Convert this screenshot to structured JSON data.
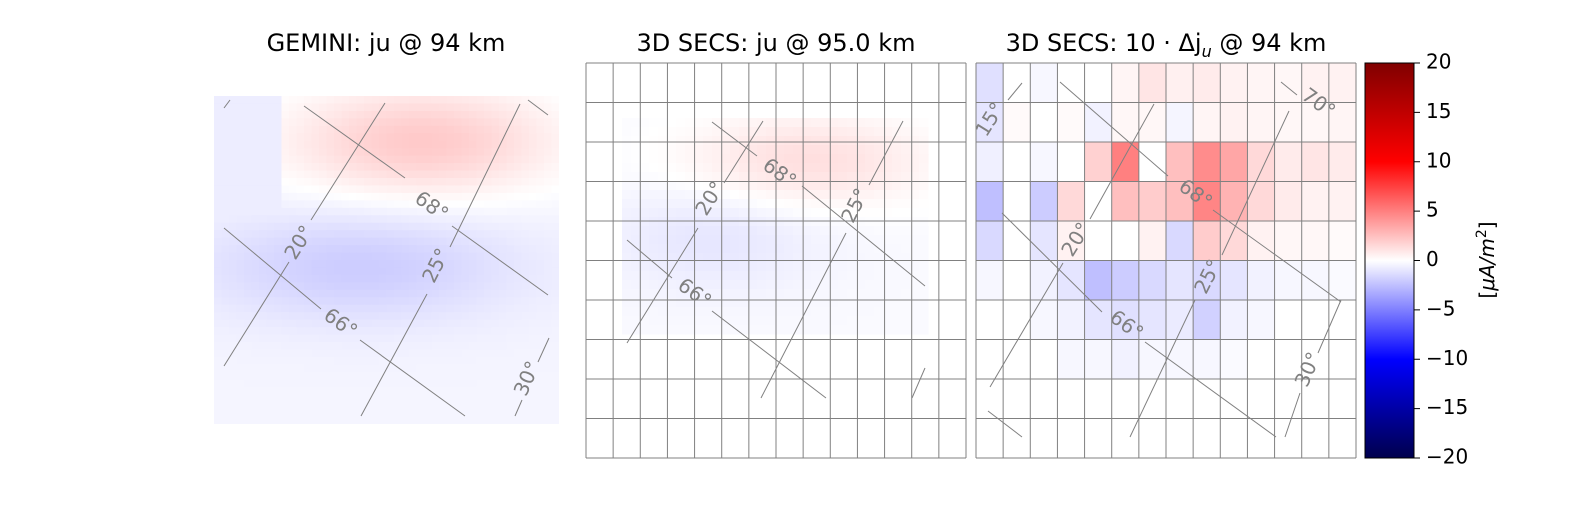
{
  "chart_data": [
    {
      "type": "heatmap",
      "panel": "gemini",
      "title": "GEMINI: ju @ 94 km",
      "grid_lines": false,
      "contour_labels": [
        "20°",
        "25°",
        "30°",
        "68°",
        "66°"
      ],
      "pattern": {
        "positive_region": "upper-right band",
        "positive_peak_uA_m2": 2.5,
        "negative_region": "middle-left band",
        "negative_peak_uA_m2": -1.6
      }
    },
    {
      "type": "heatmap",
      "panel": "secs",
      "title": "3D SECS: ju @ 95.0 km",
      "grid_lines": true,
      "contour_labels": [
        "20°",
        "25°",
        "68°",
        "66°"
      ],
      "pattern": {
        "positive_region": "upper-middle band",
        "positive_peak_uA_m2": 1.5,
        "negative_region": "center-left band",
        "negative_peak_uA_m2": -0.8
      }
    },
    {
      "type": "heatmap",
      "panel": "diff",
      "title_prefix": "3D SECS: 10",
      "title_symbol": "Δj",
      "title_subscript": "u",
      "title_suffix": " @ 94 km",
      "grid_lines": true,
      "contour_labels": [
        "15°",
        "70°",
        "20°",
        "25°",
        "68°",
        "66°",
        "30°"
      ],
      "cells": [
        [
          -1.2,
          0,
          -0.3,
          0,
          0,
          0.4,
          1.0,
          0.6,
          0.8,
          0.5,
          0.4,
          0.3,
          0.5,
          0.5
        ],
        [
          -1.0,
          0.2,
          0,
          0.2,
          -0.5,
          0.3,
          0.3,
          -0.4,
          0.4,
          0.5,
          0.4,
          0.3,
          0.3,
          0.4
        ],
        [
          -0.6,
          0,
          -0.3,
          0,
          1.8,
          5.0,
          0,
          2.5,
          4.5,
          3.5,
          1.5,
          0.8,
          1.0,
          0.8
        ],
        [
          -2.5,
          0,
          -2.0,
          1.5,
          0,
          2.5,
          2.0,
          2.5,
          4.8,
          3.0,
          1.5,
          0.8,
          0.5,
          0.5
        ],
        [
          -1.5,
          0,
          -1.0,
          0.5,
          0,
          0,
          0.5,
          -1.5,
          2.0,
          1.5,
          0.5,
          0.3,
          0.3,
          0.2
        ],
        [
          -0.3,
          0,
          -0.5,
          -1.0,
          -2.5,
          -2.0,
          -1.5,
          -1.0,
          -1.5,
          -1.0,
          -0.5,
          -0.3,
          -0.3,
          -0.2
        ],
        [
          0,
          0,
          -0.3,
          -0.5,
          -1.0,
          -1.2,
          -1.0,
          -0.8,
          -1.8,
          -0.5,
          -0.3,
          0,
          0,
          0
        ],
        [
          0,
          0,
          0,
          -0.3,
          -0.3,
          -0.5,
          -0.3,
          -0.3,
          -0.3,
          -0.2,
          0,
          0,
          0,
          0
        ],
        [
          0,
          0,
          0,
          0,
          0,
          0,
          0,
          0,
          0,
          0,
          0,
          0,
          0,
          0
        ],
        [
          0,
          0,
          0,
          0,
          0,
          0,
          0,
          0,
          0,
          0,
          0,
          0,
          0,
          0
        ]
      ]
    }
  ],
  "colorbar": {
    "colormap": "seismic",
    "min": -20,
    "max": 20,
    "ticks": [
      20,
      15,
      10,
      5,
      0,
      -5,
      -10,
      -15,
      -20
    ],
    "tick_labels": [
      "20",
      "15",
      "10",
      "5",
      "0",
      "−5",
      "−10",
      "−15",
      "−20"
    ],
    "label_open": "[",
    "label_mu": "μ",
    "label_unit": "A/m",
    "label_exp": "2",
    "label_close": "]"
  },
  "colors": {
    "contour": "#808080",
    "grid": "#808080",
    "negative": "#0000ff",
    "positive": "#ff0000"
  }
}
